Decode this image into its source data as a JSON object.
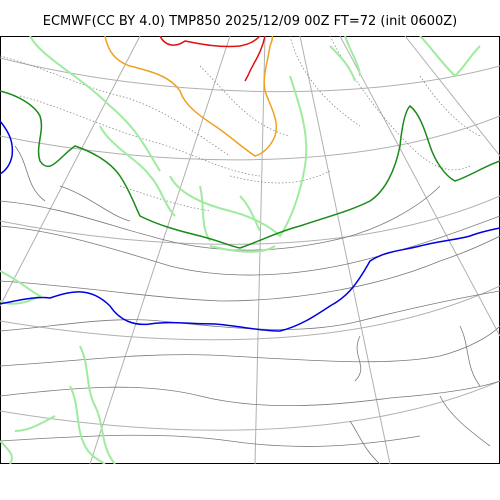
{
  "title": "ECMWF(CC BY 4.0) TMP850 2025/12/09 00Z FT=72 (init 0600Z)",
  "map": {
    "variable": "TMP850",
    "model": "ECMWF",
    "license": "CC BY 4.0",
    "valid": "2025/12/09 00Z",
    "forecast_hour": 72,
    "init": "0600Z",
    "colors": {
      "coastline": "#a0eba0",
      "graticule": "#b0b0b0",
      "isotherm_minor": "#808080",
      "isotherm_zero": "#0000e0",
      "isotherm_green": "#1a8a1a",
      "isotherm_orange": "#f0a020",
      "isotherm_red": "#e01010"
    },
    "contours": [
      {
        "name": "isotherm-red",
        "color_key": "isotherm_red"
      },
      {
        "name": "isotherm-orange",
        "color_key": "isotherm_orange"
      },
      {
        "name": "isotherm-green",
        "color_key": "isotherm_green"
      },
      {
        "name": "isotherm-blue",
        "color_key": "isotherm_zero"
      }
    ]
  }
}
